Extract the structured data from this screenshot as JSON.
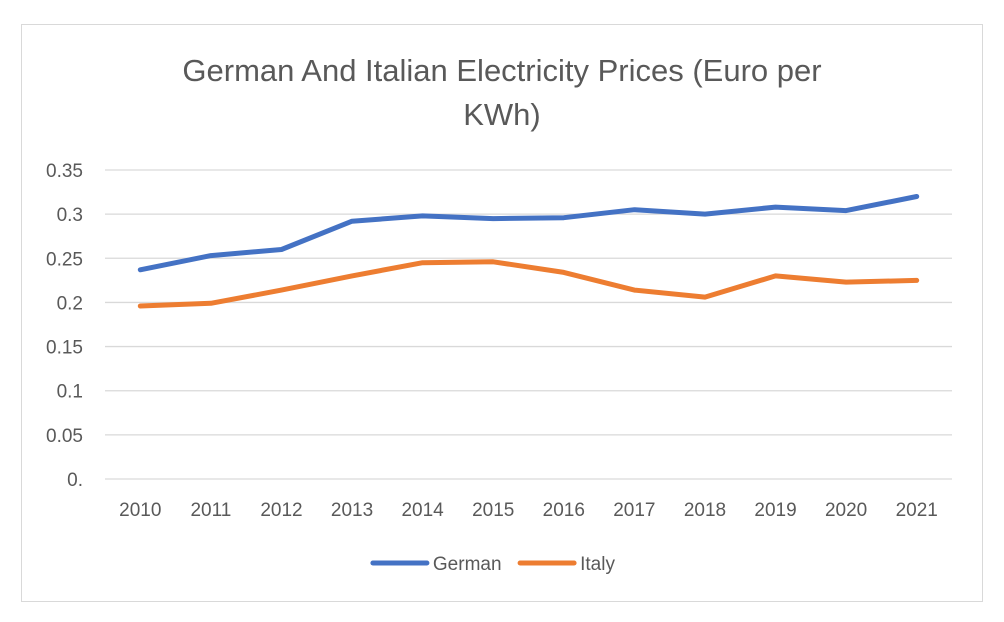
{
  "chart_data": {
    "type": "line",
    "title_lines": [
      "German And Italian Electricity Prices (Euro per",
      "KWh)"
    ],
    "categories": [
      "2010",
      "2011",
      "2012",
      "2013",
      "2014",
      "2015",
      "2016",
      "2017",
      "2018",
      "2019",
      "2020",
      "2021"
    ],
    "y_ticks": [
      "0.",
      "0.05",
      "0.1",
      "0.15",
      "0.2",
      "0.25",
      "0.3",
      "0.35"
    ],
    "ylim": [
      0,
      0.35
    ],
    "grid": true,
    "legend_position": "bottom",
    "series": [
      {
        "name": "German",
        "color": "#4472c4",
        "values": [
          0.237,
          0.253,
          0.26,
          0.292,
          0.298,
          0.295,
          0.296,
          0.305,
          0.3,
          0.308,
          0.304,
          0.32
        ]
      },
      {
        "name": "Italy",
        "color": "#ed7d31",
        "values": [
          0.196,
          0.199,
          0.214,
          0.23,
          0.245,
          0.246,
          0.234,
          0.214,
          0.206,
          0.23,
          0.223,
          0.225
        ]
      }
    ]
  }
}
